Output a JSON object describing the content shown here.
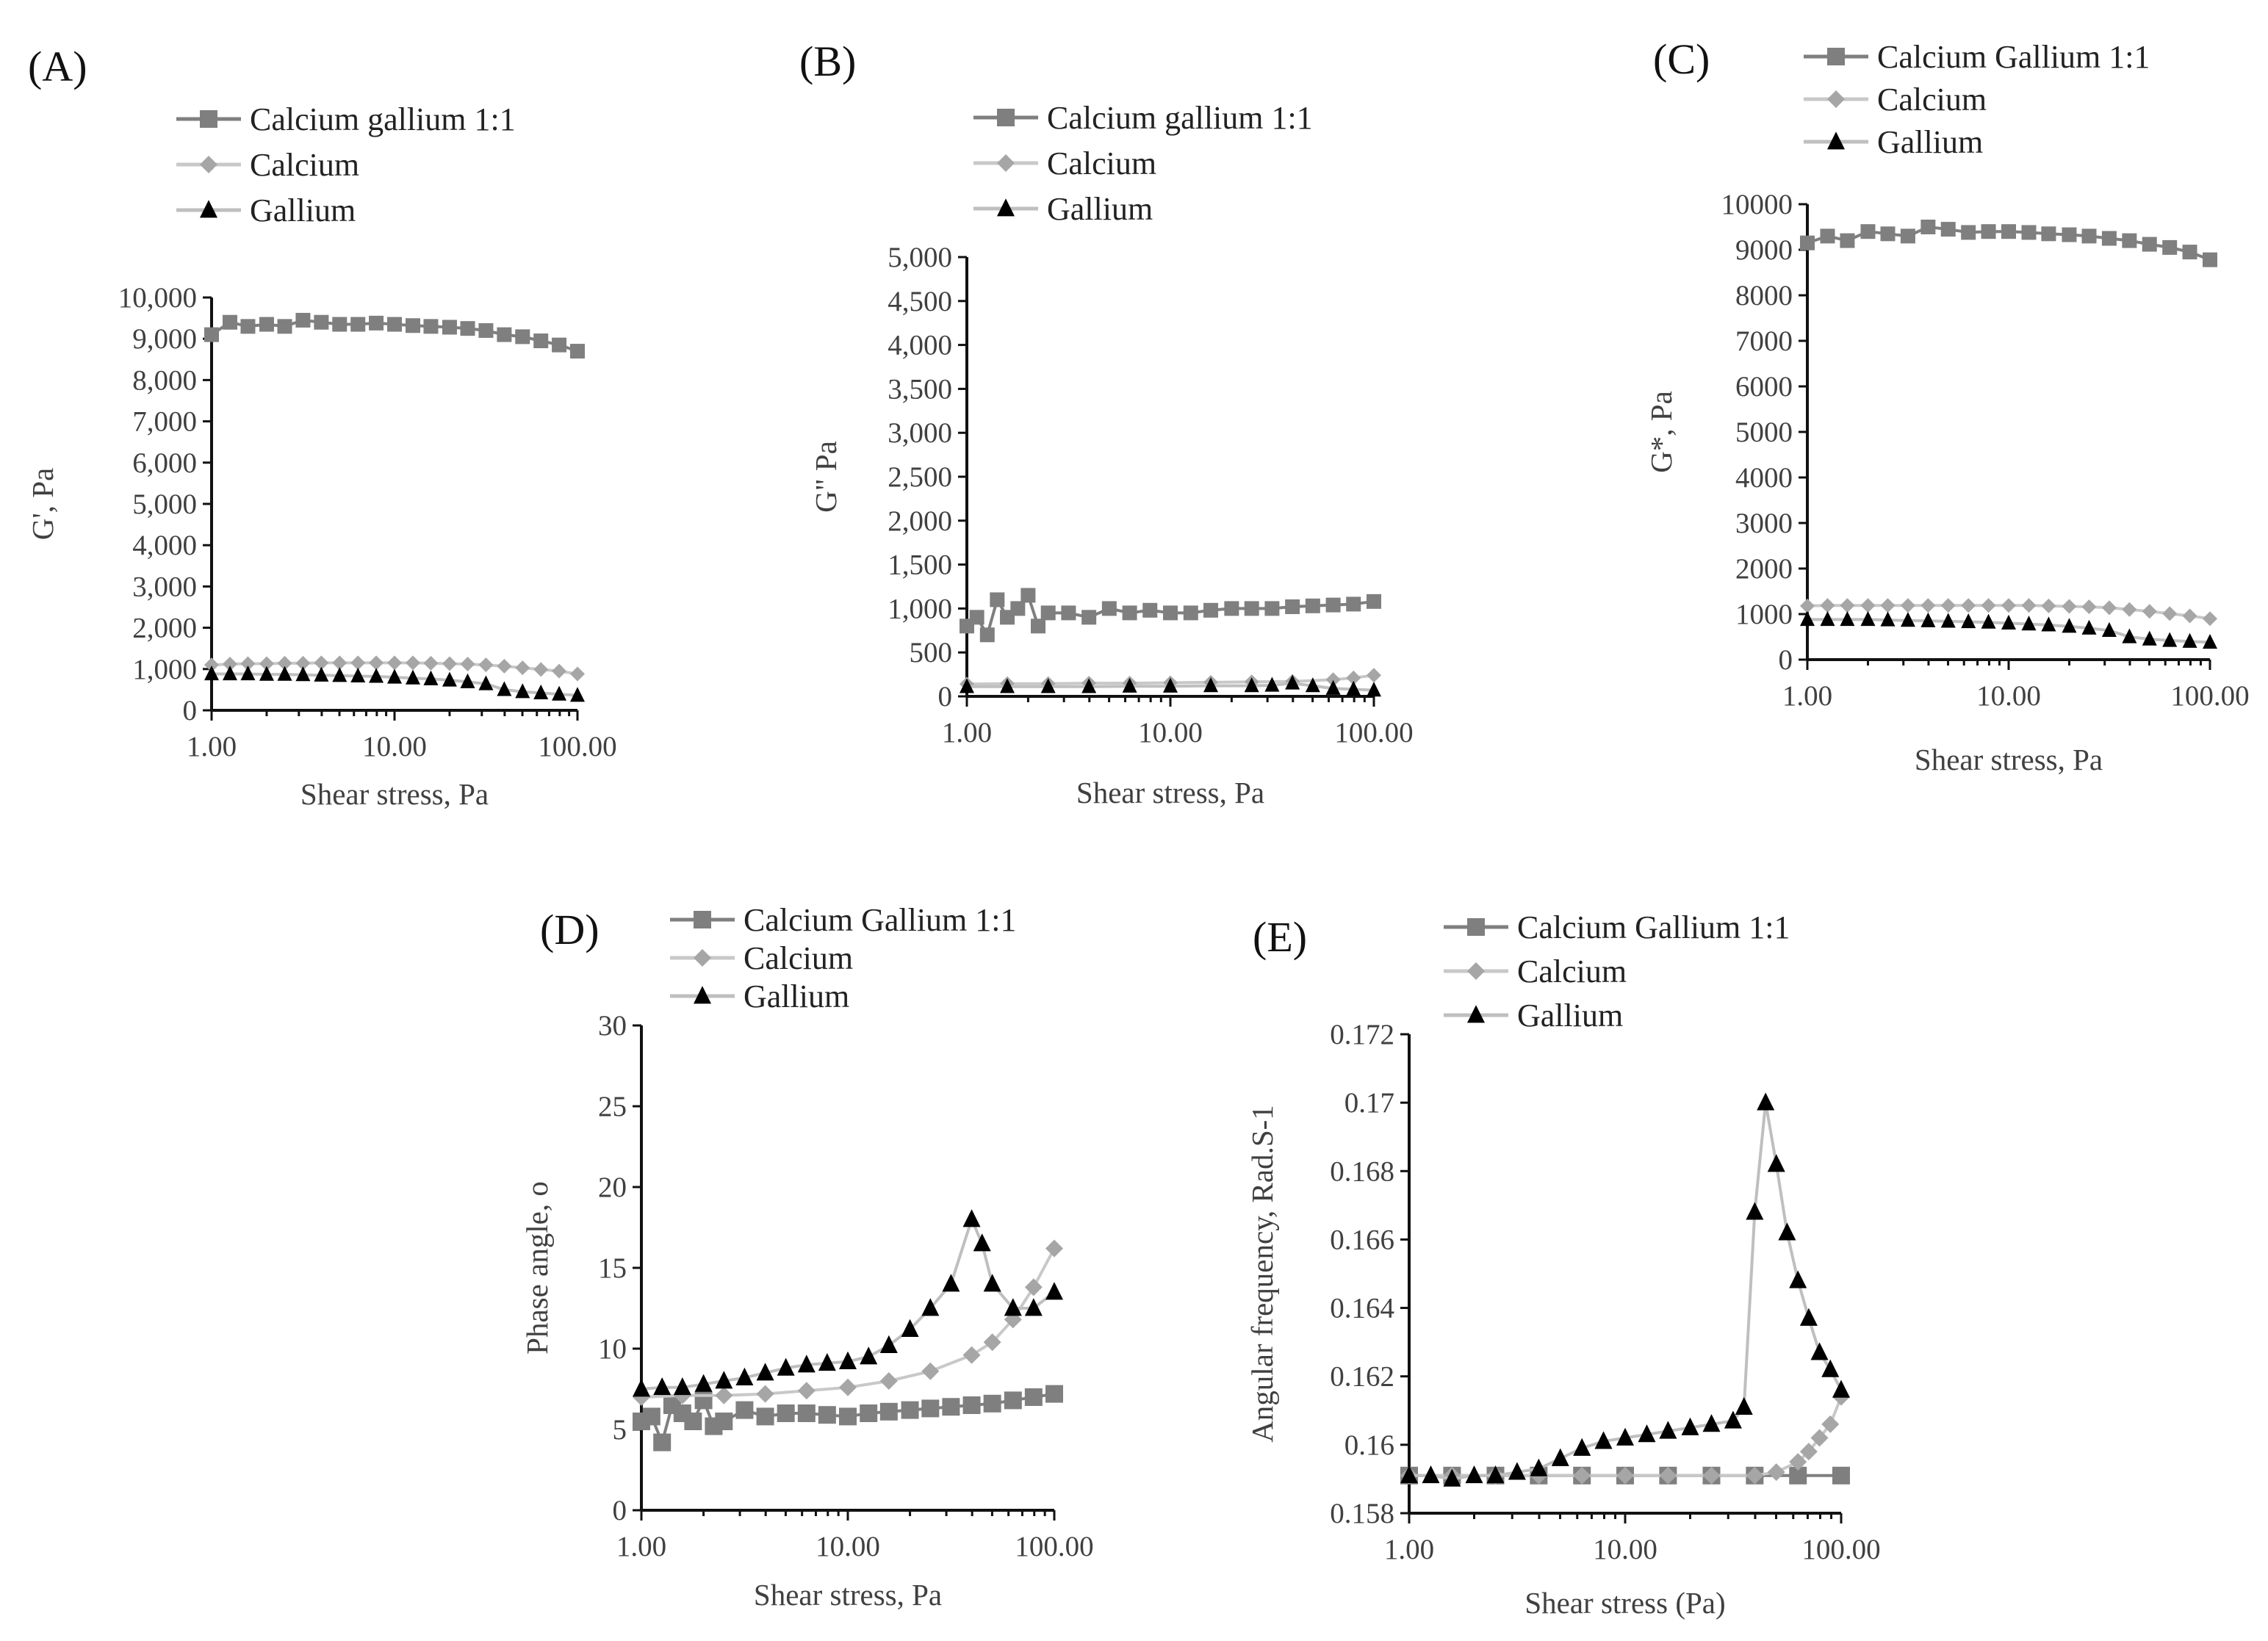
{
  "colors": {
    "calcium_gallium": "#7f7f7f",
    "calcium": "#a6a6a6",
    "calcium_light": "#c8c8c8",
    "gallium": "#000000",
    "gallium_line": "#bfbfbf",
    "axis_text": "#404040"
  },
  "chart_data": [
    {
      "panel": "(A)",
      "type": "line",
      "xlabel": "Shear stress, Pa",
      "ylabel": "G', Pa",
      "xscale": "log",
      "xlim": [
        1,
        100
      ],
      "ylim": [
        0,
        10000
      ],
      "xticks": [
        1,
        10,
        100
      ],
      "xtick_labels": [
        "1.00",
        "10.00",
        "100.00"
      ],
      "yticks": [
        0,
        1000,
        2000,
        3000,
        4000,
        5000,
        6000,
        7000,
        8000,
        9000,
        10000
      ],
      "ytick_labels": [
        "0",
        "1,000",
        "2,000",
        "3,000",
        "4,000",
        "5,000",
        "6,000",
        "7,000",
        "8,000",
        "9,000",
        "10,000"
      ],
      "legend": [
        "Calcium gallium 1:1",
        "Calcium",
        "Gallium"
      ],
      "legend_position": "top",
      "series": [
        {
          "name": "Calcium gallium 1:1",
          "marker": "square",
          "x": [
            1,
            1.26,
            1.58,
            2,
            2.51,
            3.16,
            3.98,
            5.01,
            6.31,
            7.94,
            10,
            12.6,
            15.8,
            20,
            25.1,
            31.6,
            39.8,
            50.1,
            63.1,
            79.4,
            100
          ],
          "y": [
            9100,
            9400,
            9300,
            9350,
            9300,
            9450,
            9400,
            9350,
            9350,
            9380,
            9350,
            9320,
            9300,
            9280,
            9250,
            9200,
            9100,
            9050,
            8950,
            8850,
            8700
          ]
        },
        {
          "name": "Calcium",
          "marker": "diamond",
          "x": [
            1,
            1.26,
            1.58,
            2,
            2.51,
            3.16,
            3.98,
            5.01,
            6.31,
            7.94,
            10,
            12.6,
            15.8,
            20,
            25.1,
            31.6,
            39.8,
            50.1,
            63.1,
            79.4,
            100
          ],
          "y": [
            1100,
            1120,
            1130,
            1130,
            1140,
            1140,
            1150,
            1150,
            1150,
            1150,
            1150,
            1150,
            1140,
            1130,
            1120,
            1100,
            1070,
            1030,
            990,
            950,
            880
          ]
        },
        {
          "name": "Gallium",
          "marker": "triangle",
          "x": [
            1,
            1.26,
            1.58,
            2,
            2.51,
            3.16,
            3.98,
            5.01,
            6.31,
            7.94,
            10,
            12.6,
            15.8,
            20,
            25.1,
            31.6,
            39.8,
            50.1,
            63.1,
            79.4,
            100
          ],
          "y": [
            880,
            880,
            880,
            870,
            870,
            860,
            850,
            840,
            830,
            820,
            800,
            780,
            760,
            730,
            690,
            640,
            500,
            450,
            420,
            390,
            360
          ]
        }
      ]
    },
    {
      "panel": "(B)",
      "type": "line",
      "xlabel": "Shear stress, Pa",
      "ylabel": "G\" Pa",
      "xscale": "log",
      "xlim": [
        1,
        100
      ],
      "ylim": [
        0,
        5000
      ],
      "xticks": [
        1,
        10,
        100
      ],
      "xtick_labels": [
        "1.00",
        "10.00",
        "100.00"
      ],
      "yticks": [
        0,
        500,
        1000,
        1500,
        2000,
        2500,
        3000,
        3500,
        4000,
        4500,
        5000
      ],
      "ytick_labels": [
        "0",
        "500",
        "1,000",
        "1,500",
        "2,000",
        "2,500",
        "3,000",
        "3,500",
        "4,000",
        "4,500",
        "5,000"
      ],
      "legend": [
        "Calcium gallium 1:1",
        "Calcium",
        "Gallium"
      ],
      "legend_position": "top",
      "series": [
        {
          "name": "Calcium gallium 1:1",
          "marker": "square",
          "x": [
            1,
            1.12,
            1.26,
            1.41,
            1.58,
            1.78,
            2,
            2.24,
            2.51,
            3.16,
            3.98,
            5.01,
            6.31,
            7.94,
            10,
            12.6,
            15.8,
            20,
            25.1,
            31.6,
            39.8,
            50.1,
            63.1,
            79.4,
            100
          ],
          "y": [
            800,
            900,
            700,
            1100,
            900,
            1000,
            1150,
            800,
            950,
            950,
            900,
            1000,
            950,
            980,
            950,
            950,
            980,
            1000,
            1000,
            1000,
            1020,
            1030,
            1040,
            1050,
            1080
          ]
        },
        {
          "name": "Calcium",
          "marker": "diamond",
          "x": [
            1,
            1.58,
            2.51,
            3.98,
            6.31,
            10,
            15.8,
            25.1,
            39.8,
            63.1,
            79.4,
            100
          ],
          "y": [
            140,
            145,
            145,
            150,
            150,
            155,
            160,
            165,
            170,
            190,
            210,
            240
          ]
        },
        {
          "name": "Gallium",
          "marker": "triangle",
          "x": [
            1,
            1.58,
            2.51,
            3.98,
            6.31,
            10,
            15.8,
            25.1,
            31.6,
            39.8,
            50.1,
            63.1,
            79.4,
            100
          ],
          "y": [
            110,
            110,
            110,
            110,
            115,
            115,
            120,
            120,
            125,
            150,
            120,
            90,
            80,
            70
          ]
        }
      ]
    },
    {
      "panel": "(C)",
      "type": "line",
      "xlabel": "Shear stress, Pa",
      "ylabel": "G*, Pa",
      "xscale": "log",
      "xlim": [
        1,
        100
      ],
      "ylim": [
        0,
        10000
      ],
      "xticks": [
        1,
        10,
        100
      ],
      "xtick_labels": [
        "1.00",
        "10.00",
        "100.00"
      ],
      "yticks": [
        0,
        1000,
        2000,
        3000,
        4000,
        5000,
        6000,
        7000,
        8000,
        9000,
        10000
      ],
      "ytick_labels": [
        "0",
        "1000",
        "2000",
        "3000",
        "4000",
        "5000",
        "6000",
        "7000",
        "8000",
        "9000",
        "10000"
      ],
      "legend": [
        "Calcium Gallium 1:1",
        "Calcium",
        "Gallium"
      ],
      "legend_position": "top",
      "series": [
        {
          "name": "Calcium Gallium 1:1",
          "marker": "square",
          "x": [
            1,
            1.26,
            1.58,
            2,
            2.51,
            3.16,
            3.98,
            5.01,
            6.31,
            7.94,
            10,
            12.6,
            15.8,
            20,
            25.1,
            31.6,
            39.8,
            50.1,
            63.1,
            79.4,
            100
          ],
          "y": [
            9150,
            9300,
            9200,
            9400,
            9350,
            9300,
            9500,
            9450,
            9380,
            9400,
            9400,
            9380,
            9350,
            9330,
            9300,
            9250,
            9200,
            9120,
            9050,
            8950,
            8780
          ]
        },
        {
          "name": "Calcium",
          "marker": "diamond",
          "x": [
            1,
            1.26,
            1.58,
            2,
            2.51,
            3.16,
            3.98,
            5.01,
            6.31,
            7.94,
            10,
            12.6,
            15.8,
            20,
            25.1,
            31.6,
            39.8,
            50.1,
            63.1,
            79.4,
            100
          ],
          "y": [
            1180,
            1190,
            1190,
            1190,
            1190,
            1190,
            1190,
            1190,
            1190,
            1190,
            1190,
            1190,
            1180,
            1170,
            1160,
            1140,
            1100,
            1060,
            1010,
            960,
            900
          ]
        },
        {
          "name": "Gallium",
          "marker": "triangle",
          "x": [
            1,
            1.26,
            1.58,
            2,
            2.51,
            3.16,
            3.98,
            5.01,
            6.31,
            7.94,
            10,
            12.6,
            15.8,
            20,
            25.1,
            31.6,
            39.8,
            50.1,
            63.1,
            79.4,
            100
          ],
          "y": [
            880,
            880,
            880,
            880,
            870,
            860,
            850,
            840,
            830,
            820,
            800,
            780,
            760,
            730,
            690,
            640,
            500,
            450,
            420,
            400,
            380
          ]
        }
      ]
    },
    {
      "panel": "(D)",
      "type": "line",
      "xlabel": "Shear stress, Pa",
      "ylabel": "Phase angle, o",
      "xscale": "log",
      "xlim": [
        1,
        100
      ],
      "ylim": [
        0,
        30
      ],
      "xticks": [
        1,
        10,
        100
      ],
      "xtick_labels": [
        "1.00",
        "10.00",
        "100.00"
      ],
      "yticks": [
        0,
        5,
        10,
        15,
        20,
        25,
        30
      ],
      "ytick_labels": [
        "0",
        "5",
        "10",
        "15",
        "20",
        "25",
        "30"
      ],
      "legend": [
        "Calcium Gallium 1:1",
        "Calcium",
        "Gallium"
      ],
      "legend_position": "top",
      "series": [
        {
          "name": "Calcium Gallium 1:1",
          "marker": "square",
          "x": [
            1,
            1.12,
            1.26,
            1.41,
            1.58,
            1.78,
            2,
            2.24,
            2.51,
            3.16,
            3.98,
            5.01,
            6.31,
            7.94,
            10,
            12.6,
            15.8,
            20,
            25.1,
            31.6,
            39.8,
            50.1,
            63.1,
            79.4,
            100
          ],
          "y": [
            5.5,
            5.8,
            4.2,
            6.5,
            6.0,
            5.5,
            6.8,
            5.2,
            5.5,
            6.2,
            5.8,
            6.0,
            6.0,
            5.9,
            5.8,
            6.0,
            6.1,
            6.2,
            6.3,
            6.4,
            6.5,
            6.6,
            6.8,
            7.0,
            7.2
          ]
        },
        {
          "name": "Calcium",
          "marker": "diamond",
          "x": [
            1,
            1.58,
            2.51,
            3.98,
            6.31,
            10,
            15.8,
            25.1,
            39.8,
            50.1,
            63.1,
            79.4,
            100
          ],
          "y": [
            7.0,
            7.1,
            7.1,
            7.2,
            7.4,
            7.6,
            8.0,
            8.6,
            9.6,
            10.4,
            11.8,
            13.8,
            16.2
          ]
        },
        {
          "name": "Gallium",
          "marker": "triangle",
          "x": [
            1,
            1.26,
            1.58,
            2,
            2.51,
            3.16,
            3.98,
            5.01,
            6.31,
            7.94,
            10,
            12.6,
            15.8,
            20,
            25.1,
            31.6,
            39.8,
            44.7,
            50.1,
            63.1,
            79.4,
            100
          ],
          "y": [
            7.5,
            7.6,
            7.6,
            7.8,
            8.0,
            8.2,
            8.5,
            8.8,
            9.0,
            9.1,
            9.2,
            9.5,
            10.2,
            11.2,
            12.5,
            14.0,
            18.0,
            16.5,
            14.0,
            12.5,
            12.5,
            13.5
          ]
        }
      ]
    },
    {
      "panel": "(E)",
      "type": "line",
      "xlabel": "Shear stress (Pa)",
      "ylabel": "Angular frequency, Rad.S-1",
      "xscale": "log",
      "xlim": [
        1,
        100
      ],
      "ylim": [
        0.158,
        0.172
      ],
      "xticks": [
        1,
        10,
        100
      ],
      "xtick_labels": [
        "1.00",
        "10.00",
        "100.00"
      ],
      "yticks": [
        0.158,
        0.16,
        0.162,
        0.164,
        0.166,
        0.168,
        0.17,
        0.172
      ],
      "ytick_labels": [
        "0.158",
        "0.16",
        "0.162",
        "0.164",
        "0.166",
        "0.168",
        "0.17",
        "0.172"
      ],
      "legend": [
        "Calcium Gallium 1:1",
        "Calcium",
        "Gallium"
      ],
      "legend_position": "top",
      "series": [
        {
          "name": "Calcium Gallium 1:1",
          "marker": "square",
          "x": [
            1,
            1.58,
            2.51,
            3.98,
            6.31,
            10,
            15.8,
            25.1,
            39.8,
            63.1,
            100
          ],
          "y": [
            0.1591,
            0.1591,
            0.1591,
            0.1591,
            0.1591,
            0.1591,
            0.1591,
            0.1591,
            0.1591,
            0.1591,
            0.1591
          ]
        },
        {
          "name": "Calcium",
          "marker": "diamond",
          "x": [
            1,
            1.58,
            2.51,
            3.98,
            6.31,
            10,
            15.8,
            25.1,
            39.8,
            50.1,
            63.1,
            70.8,
            79.4,
            89.1,
            100
          ],
          "y": [
            0.1591,
            0.1591,
            0.1591,
            0.1591,
            0.1591,
            0.1591,
            0.1591,
            0.1591,
            0.1591,
            0.1592,
            0.1595,
            0.1598,
            0.1602,
            0.1606,
            0.1614
          ]
        },
        {
          "name": "Gallium",
          "marker": "triangle",
          "x": [
            1,
            1.26,
            1.58,
            2,
            2.51,
            3.16,
            3.98,
            5.01,
            6.31,
            7.94,
            10,
            12.6,
            15.8,
            20,
            25.1,
            31.6,
            35.5,
            39.8,
            44.7,
            50.1,
            56.2,
            63.1,
            70.8,
            79.4,
            89.1,
            100
          ],
          "y": [
            0.1591,
            0.1591,
            0.159,
            0.1591,
            0.1591,
            0.1592,
            0.1593,
            0.1596,
            0.1599,
            0.1601,
            0.1602,
            0.1603,
            0.1604,
            0.1605,
            0.1606,
            0.1607,
            0.1611,
            0.1668,
            0.17,
            0.1682,
            0.1662,
            0.1648,
            0.1637,
            0.1627,
            0.1622,
            0.1616
          ]
        }
      ]
    }
  ]
}
